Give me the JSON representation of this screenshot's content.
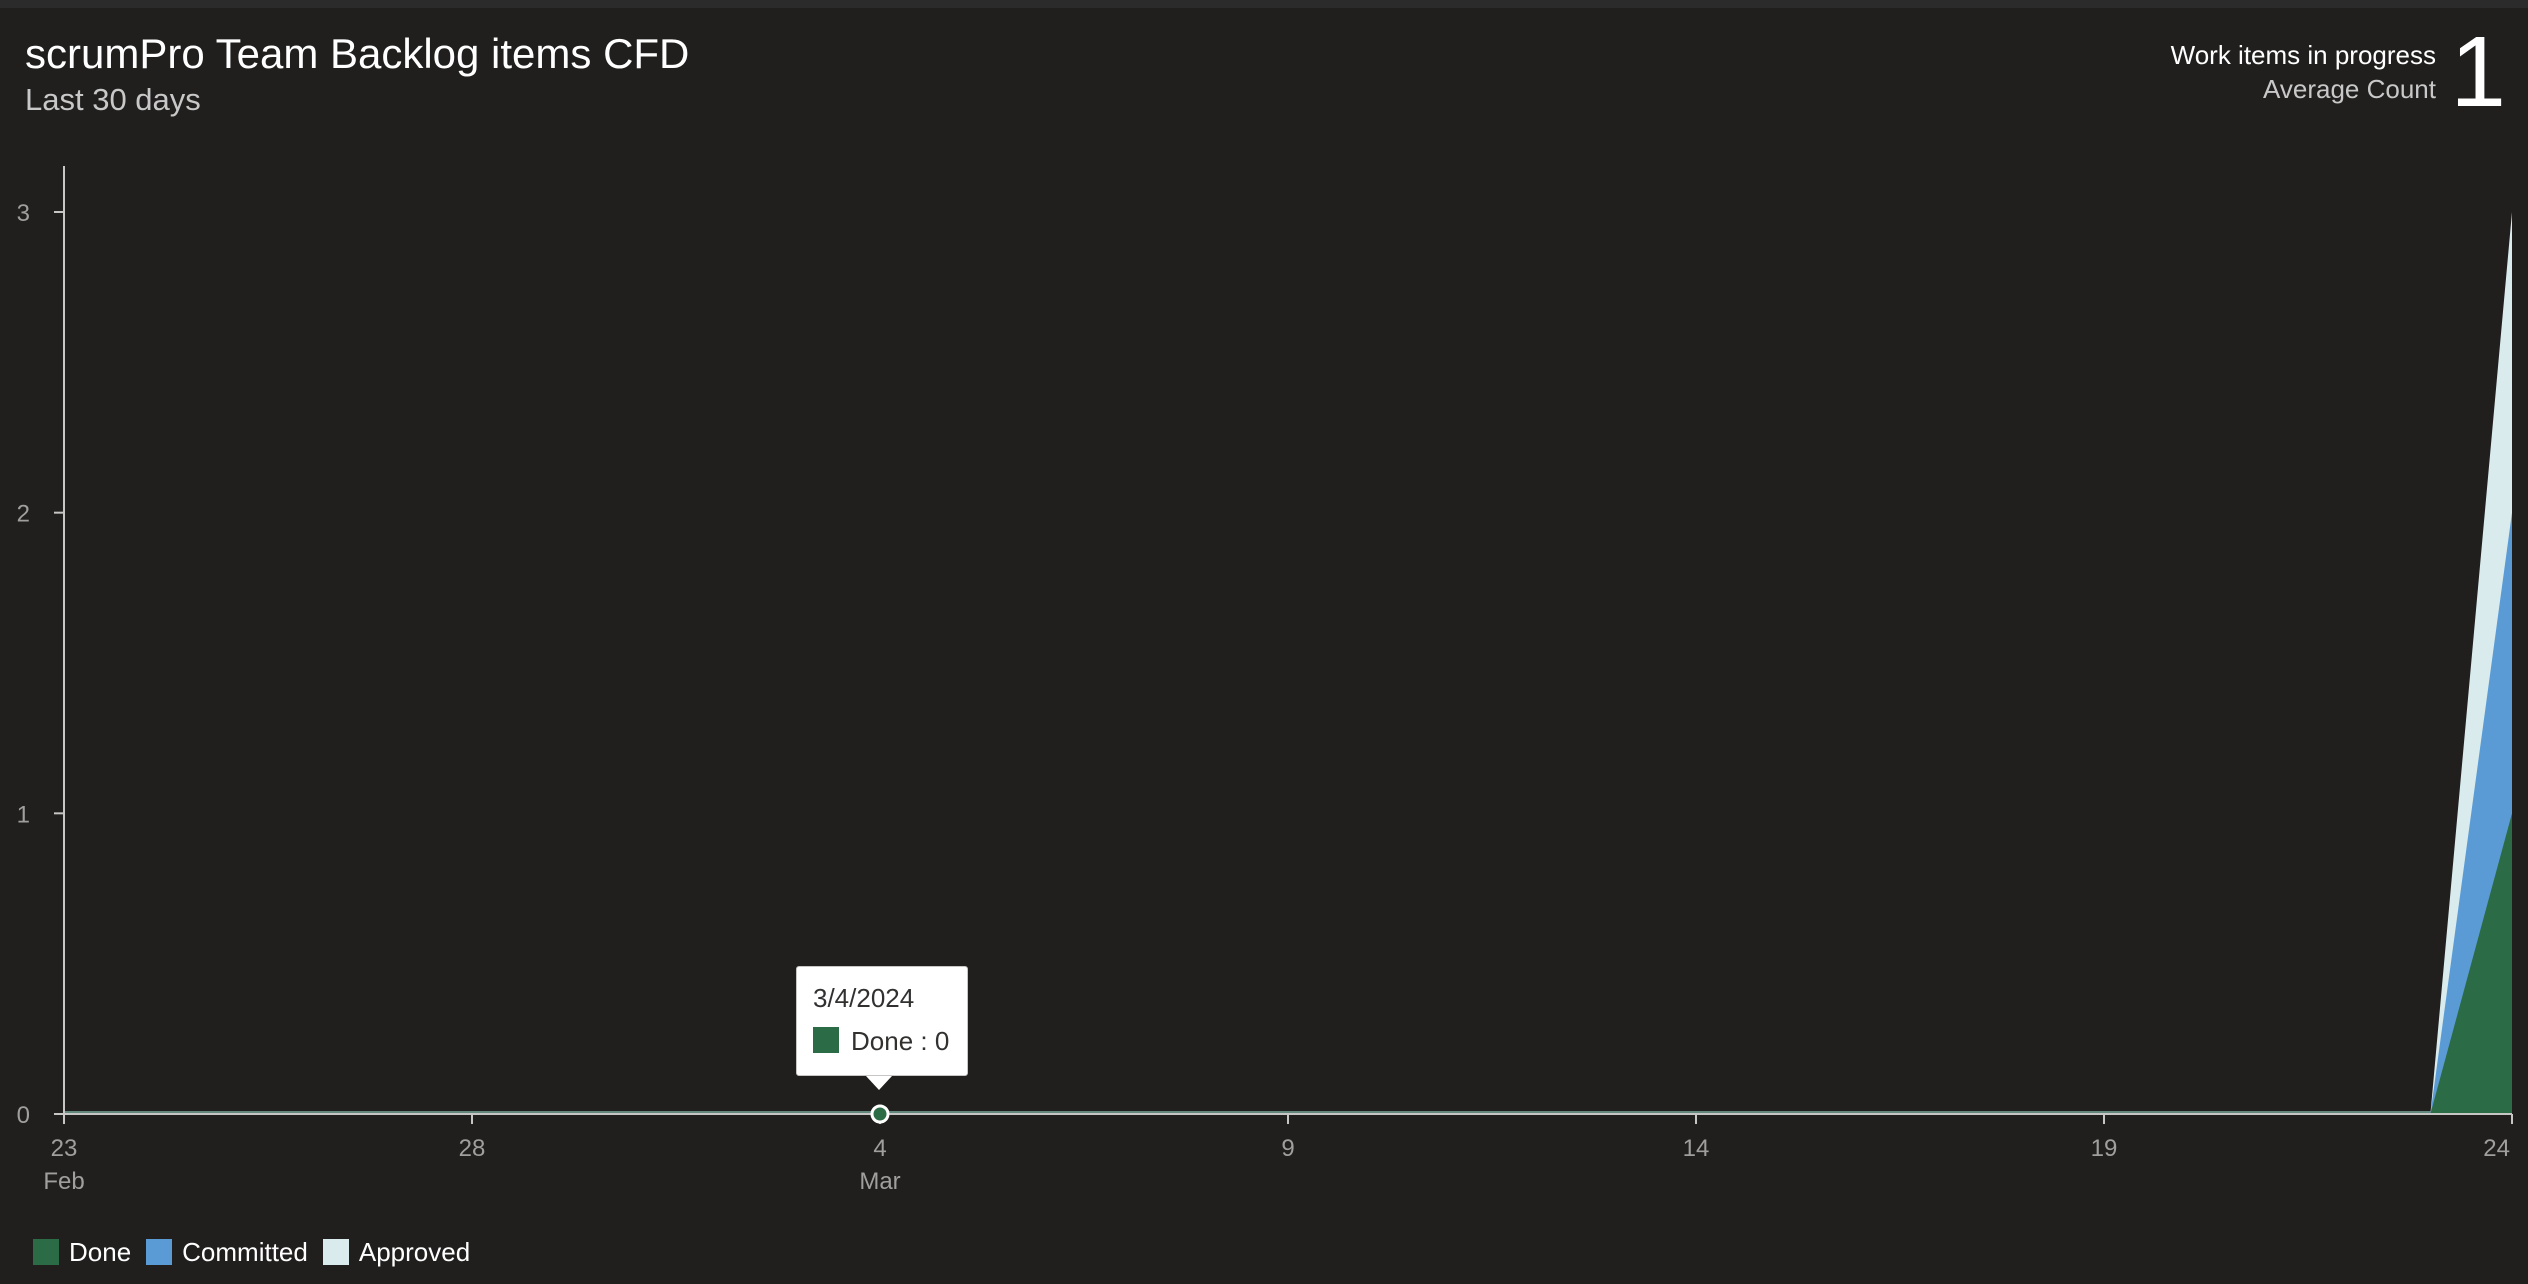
{
  "header": {
    "title": "scrumPro Team Backlog items CFD",
    "subtitle": "Last 30 days"
  },
  "kpi": {
    "label": "Work items in progress",
    "sublabel": "Average Count",
    "value": "1"
  },
  "tooltip": {
    "date": "3/4/2024",
    "series_text": "Done : 0",
    "color": "#2b6b45"
  },
  "colors": {
    "done": "#2b6b45",
    "committed": "#5b9bd5",
    "approved": "#d9ebec",
    "axis": "#c8c6c4",
    "baseline": "#8fcfbf"
  },
  "chart_data": {
    "type": "area",
    "stacked": true,
    "title": "scrumPro Team Backlog items CFD",
    "subtitle": "Last 30 days",
    "x": [
      "2024-02-23",
      "2024-02-24",
      "2024-02-25",
      "2024-02-26",
      "2024-02-27",
      "2024-02-28",
      "2024-02-29",
      "2024-03-01",
      "2024-03-02",
      "2024-03-03",
      "2024-03-04",
      "2024-03-05",
      "2024-03-06",
      "2024-03-07",
      "2024-03-08",
      "2024-03-09",
      "2024-03-10",
      "2024-03-11",
      "2024-03-12",
      "2024-03-13",
      "2024-03-14",
      "2024-03-15",
      "2024-03-16",
      "2024-03-17",
      "2024-03-18",
      "2024-03-19",
      "2024-03-20",
      "2024-03-21",
      "2024-03-22",
      "2024-03-23",
      "2024-03-24"
    ],
    "series": [
      {
        "name": "Done",
        "values": [
          0,
          0,
          0,
          0,
          0,
          0,
          0,
          0,
          0,
          0,
          0,
          0,
          0,
          0,
          0,
          0,
          0,
          0,
          0,
          0,
          0,
          0,
          0,
          0,
          0,
          0,
          0,
          0,
          0,
          0,
          1
        ]
      },
      {
        "name": "Committed",
        "values": [
          0,
          0,
          0,
          0,
          0,
          0,
          0,
          0,
          0,
          0,
          0,
          0,
          0,
          0,
          0,
          0,
          0,
          0,
          0,
          0,
          0,
          0,
          0,
          0,
          0,
          0,
          0,
          0,
          0,
          0,
          1
        ]
      },
      {
        "name": "Approved",
        "values": [
          0,
          0,
          0,
          0,
          0,
          0,
          0,
          0,
          0,
          0,
          0,
          0,
          0,
          0,
          0,
          0,
          0,
          0,
          0,
          0,
          0,
          0,
          0,
          0,
          0,
          0,
          0,
          0,
          0,
          0,
          1
        ]
      }
    ],
    "x_ticks": [
      {
        "label": "23",
        "sublabel": "Feb",
        "index": 0
      },
      {
        "label": "28",
        "sublabel": "",
        "index": 5
      },
      {
        "label": "4",
        "sublabel": "Mar",
        "index": 10
      },
      {
        "label": "9",
        "sublabel": "",
        "index": 15
      },
      {
        "label": "14",
        "sublabel": "",
        "index": 20
      },
      {
        "label": "19",
        "sublabel": "",
        "index": 25
      },
      {
        "label": "24",
        "sublabel": "",
        "index": 30
      }
    ],
    "y_ticks": [
      "0",
      "1",
      "2",
      "3"
    ],
    "ylim": [
      0,
      3
    ],
    "highlight_index": 10,
    "legend": [
      "Done",
      "Committed",
      "Approved"
    ],
    "legend_position": "bottom-left",
    "grid": false
  }
}
